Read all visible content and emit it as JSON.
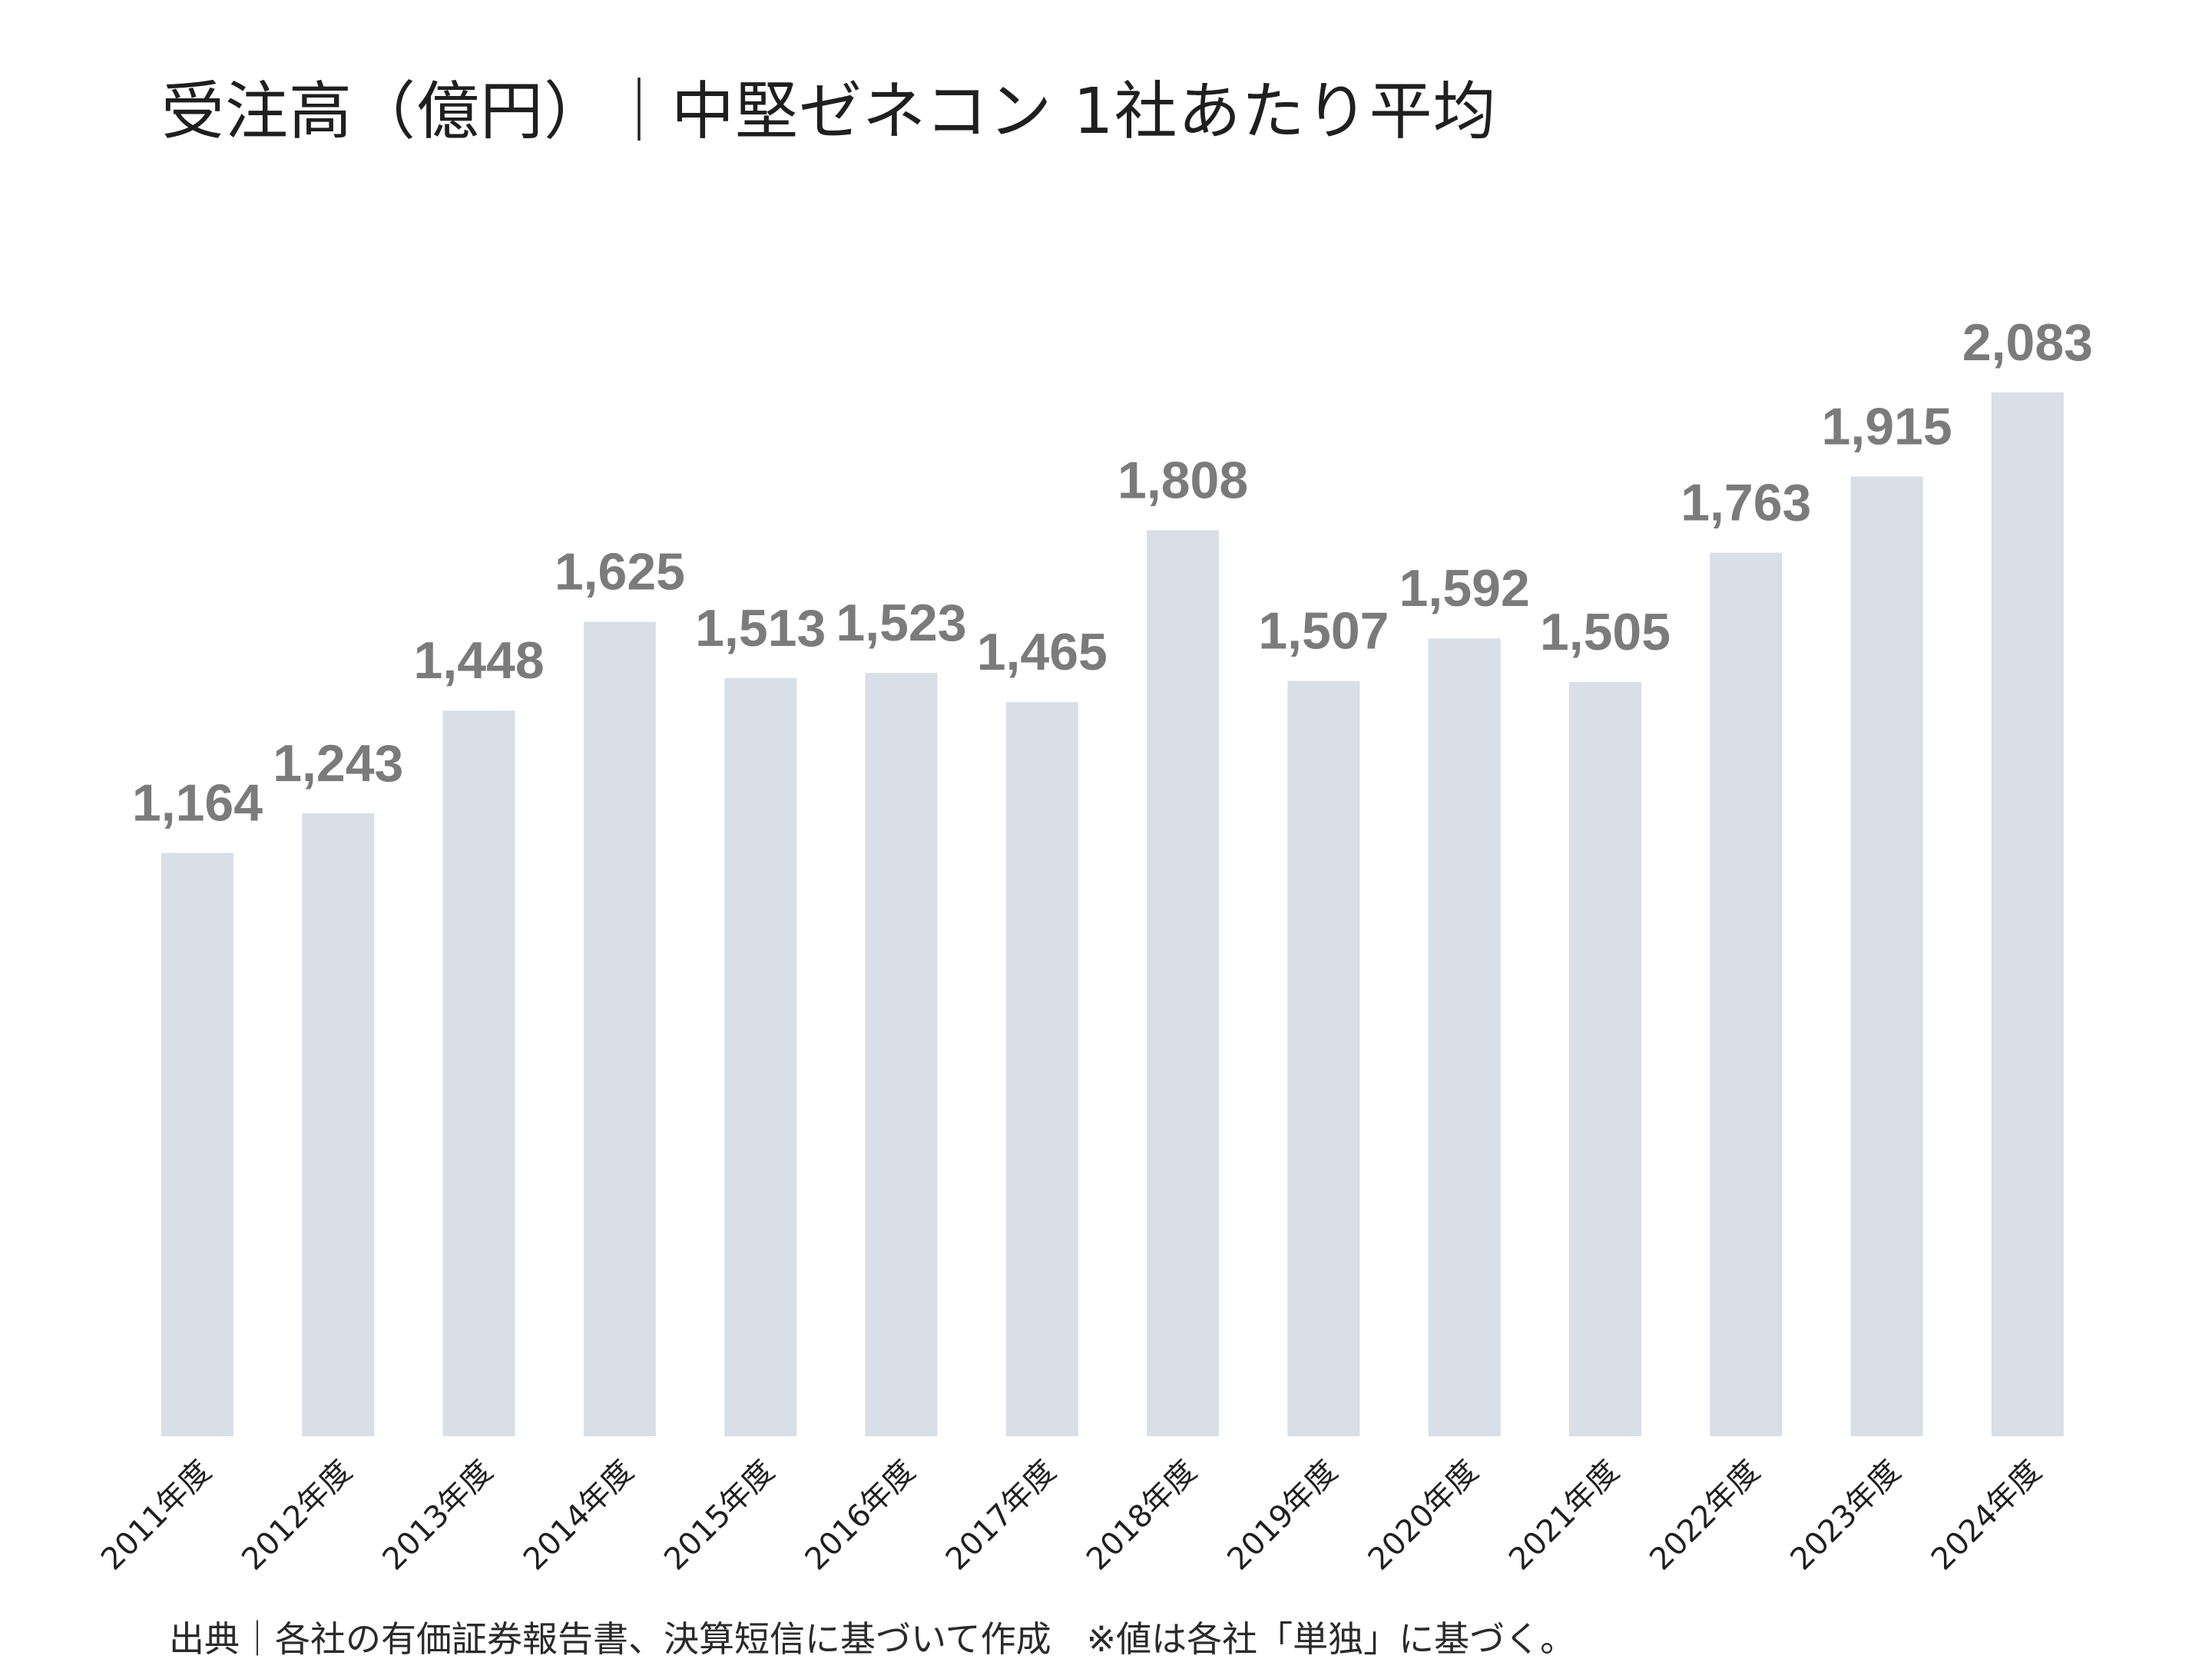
{
  "chart_data": {
    "type": "bar",
    "title": "受注高（億円）｜中堅ゼネコン 1社あたり平均",
    "categories": [
      "2011年度",
      "2012年度",
      "2013年度",
      "2014年度",
      "2015年度",
      "2016年度",
      "2017年度",
      "2018年度",
      "2019年度",
      "2020年度",
      "2021年度",
      "2022年度",
      "2023年度",
      "2024年度"
    ],
    "values": [
      1164,
      1243,
      1448,
      1625,
      1513,
      1523,
      1465,
      1808,
      1507,
      1592,
      1505,
      1763,
      1915,
      2083
    ],
    "value_labels": [
      "1,164",
      "1,243",
      "1,448",
      "1,625",
      "1,513",
      "1,523",
      "1,465",
      "1,808",
      "1,507",
      "1,592",
      "1,505",
      "1,763",
      "1,915",
      "2,083"
    ],
    "xlabel": "",
    "ylabel": "",
    "ylim": [
      0,
      2300
    ],
    "grid": false,
    "legend": "none",
    "bar_color": "#d9dfe7",
    "label_color": "#7b7b7b"
  },
  "footnote": "出典｜各社の有価証券報告書、決算短信に基づいて作成　※値は各社「単独」に基づく。"
}
